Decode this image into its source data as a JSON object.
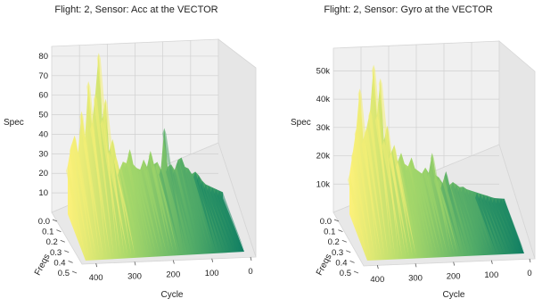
{
  "chart_data": [
    {
      "type": "surface3d",
      "title": "Flight: 2, Sensor: Acc at the VECTOR",
      "xlabel": "Cycle",
      "ylabel": "Freqs",
      "zlabel": "Spec",
      "xlim": [
        0,
        450
      ],
      "ylim": [
        0.0,
        0.5
      ],
      "zlim": [
        0,
        85
      ],
      "xticks": [
        "0",
        "100",
        "200",
        "300",
        "400"
      ],
      "yticks": [
        "0.0",
        "0.1",
        "0.2",
        "0.3",
        "0.4",
        "0.5"
      ],
      "zticks": [
        "10",
        "20",
        "30",
        "40",
        "50",
        "60",
        "70",
        "80"
      ],
      "colormap": [
        "#fdf17a",
        "#a8d86a",
        "#54ad68",
        "#0f7e63"
      ],
      "grid": true,
      "peak_profile": {
        "cycle": [
          450,
          440,
          430,
          420,
          410,
          400,
          390,
          380,
          370,
          360,
          350,
          340,
          330,
          320,
          310,
          300,
          290,
          280,
          270,
          260,
          250,
          240,
          230,
          220,
          210,
          200,
          190,
          180,
          170,
          160,
          150,
          140,
          130,
          120,
          110,
          100,
          90,
          80,
          70,
          60,
          50,
          40,
          30,
          20,
          10,
          0
        ],
        "spec": [
          25,
          35,
          40,
          31,
          52,
          38,
          67,
          45,
          60,
          81,
          47,
          57,
          30,
          36,
          27,
          20,
          24,
          23,
          30,
          22,
          20,
          19,
          24,
          20,
          28,
          21,
          22,
          18,
          39,
          19,
          20,
          17,
          22,
          23,
          18,
          17,
          14,
          15,
          13,
          10,
          8,
          7,
          6,
          5,
          4,
          3
        ]
      }
    },
    {
      "type": "surface3d",
      "title": "Flight: 2, Sensor: Gyro at the VECTOR",
      "xlabel": "Cycle",
      "ylabel": "Freqs",
      "zlabel": "Spec",
      "xlim": [
        0,
        450
      ],
      "ylim": [
        0.0,
        0.5
      ],
      "zlim": [
        0,
        58000
      ],
      "xticks": [
        "0",
        "100",
        "200",
        "300",
        "400"
      ],
      "yticks": [
        "0.0",
        "0.1",
        "0.2",
        "0.3",
        "0.4",
        "0.5"
      ],
      "zticks": [
        "10k",
        "20k",
        "30k",
        "40k",
        "50k"
      ],
      "colormap": [
        "#fdf17a",
        "#a8d86a",
        "#54ad68",
        "#0f7e63"
      ],
      "grid": true,
      "peak_profile": {
        "cycle": [
          450,
          440,
          430,
          420,
          410,
          400,
          390,
          380,
          370,
          360,
          350,
          340,
          330,
          320,
          310,
          300,
          290,
          280,
          270,
          260,
          250,
          240,
          230,
          220,
          210,
          200,
          190,
          180,
          170,
          160,
          150,
          140,
          130,
          120,
          110,
          100,
          90,
          80,
          70,
          60,
          50,
          40,
          30,
          20,
          10,
          0
        ],
        "spec": [
          14000,
          22000,
          30000,
          44000,
          26000,
          30000,
          36000,
          52000,
          34000,
          47000,
          25000,
          30000,
          20000,
          23000,
          17000,
          20000,
          16000,
          15000,
          18000,
          14000,
          13000,
          12000,
          14000,
          12000,
          19000,
          11000,
          10000,
          8000,
          12000,
          7000,
          8000,
          7000,
          6000,
          6000,
          5000,
          4500,
          4000,
          3500,
          3000,
          2500,
          2000,
          1500,
          1000,
          800,
          600,
          400
        ]
      }
    }
  ]
}
